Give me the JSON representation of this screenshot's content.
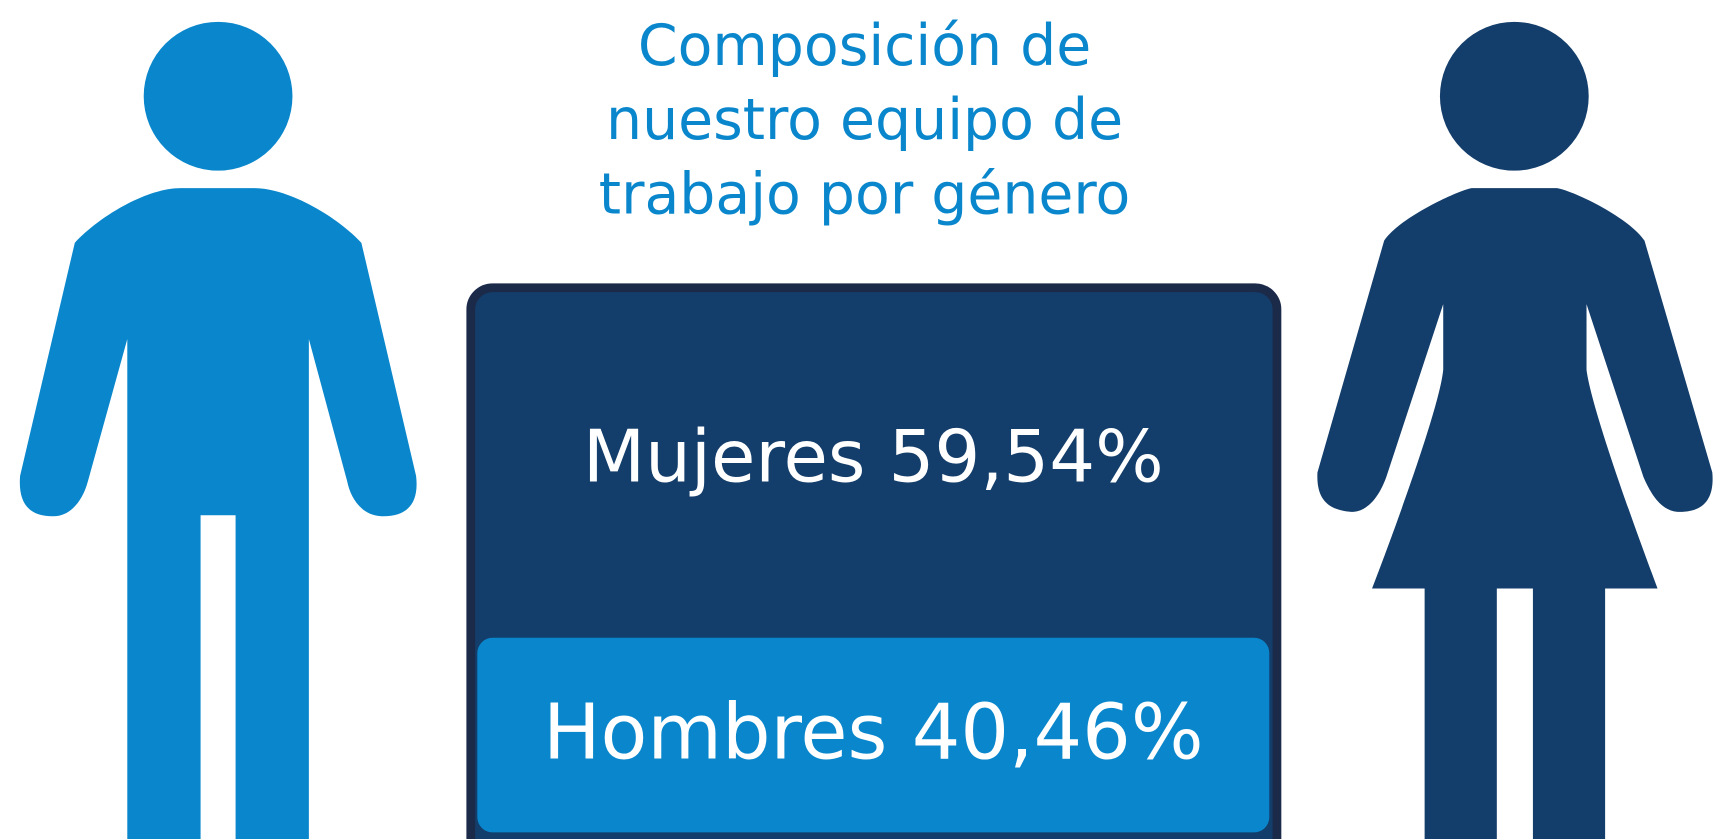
{
  "title": {
    "lines": [
      "Composición de",
      "nuestro equipo de",
      "trabajo por género"
    ]
  },
  "segments": [
    {
      "label": "Mujeres",
      "value": "59,54%"
    },
    {
      "label": "Hombres",
      "value": "40,46%"
    }
  ]
}
